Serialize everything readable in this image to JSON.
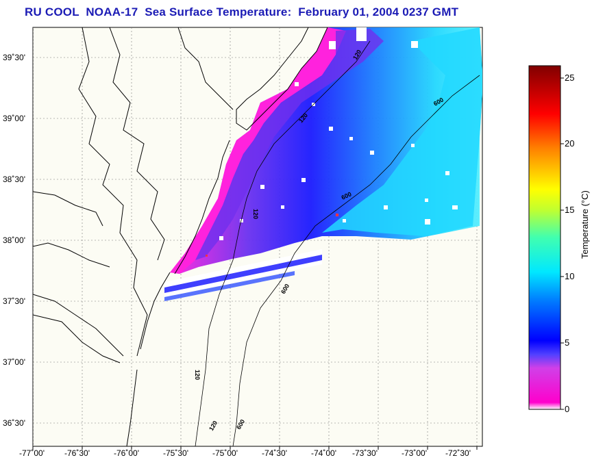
{
  "title": "RU COOL  NOAA-17  Sea Surface Temperature:  February 01, 2004 0237 GMT",
  "colorbar": {
    "label": "Temperature (°C)",
    "ticks": [
      "0",
      "5",
      "10",
      "15",
      "20",
      "25"
    ]
  },
  "x_ticks": [
    "-77˚00'",
    "-76˚30'",
    "-76˚00'",
    "-75˚30'",
    "-75˚00'",
    "-74˚30'",
    "-74˚00'",
    "-73˚30'",
    "-73˚00'",
    "-72˚30'"
  ],
  "y_ticks": [
    "39˚30'",
    "39˚00'",
    "38˚30'",
    "38˚00'",
    "37˚30'",
    "37˚00'",
    "36˚30'"
  ],
  "contour_labels": [
    "120",
    "120",
    "600",
    "600",
    "120",
    "120",
    "600",
    "120",
    "600"
  ],
  "colors": {
    "title": "#1b1bb5",
    "cold": "#ff33cc",
    "cool": "#1010ff",
    "mid": "#30e0ff",
    "warm": "#ffee00",
    "hot": "#880000"
  }
}
